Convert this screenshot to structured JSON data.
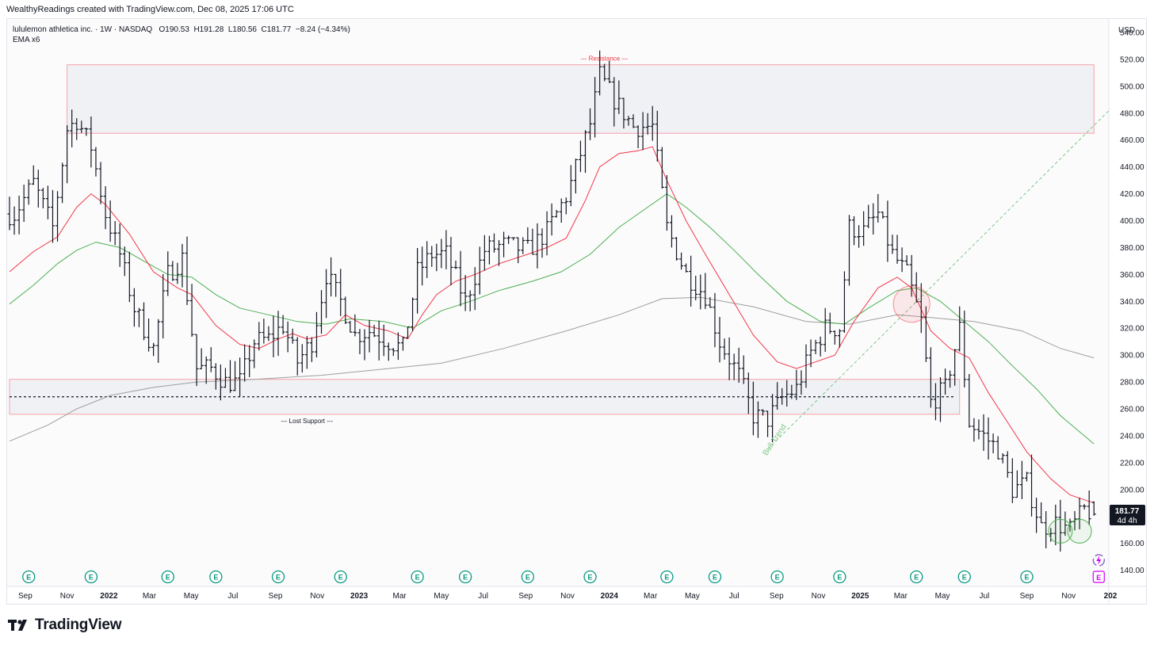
{
  "header": {
    "attribution": "WealthyReadings created with TradingView.com, Dec 08, 2025 17:06 UTC"
  },
  "legend": {
    "symbol_name": "lululemon athletica inc.",
    "interval": "1W",
    "exchange": "NASDAQ",
    "ohlc": "O190.53  H191.28  L180.56  C181.77  −8.24 (−4.34%)",
    "indicator": "EMA x6"
  },
  "brand": {
    "name": "TradingView"
  },
  "price_axis": {
    "currency": "USD",
    "badge_price": "181.77",
    "badge_time": "4d 4h"
  },
  "annotations": {
    "resistance": "--- Resistance ---",
    "lost_support": "--- Lost Support ---",
    "bull_trend": "Bull Trend"
  },
  "colors": {
    "candle": "#131722",
    "ema_fast": "#f23645",
    "ema_mid": "#4caf50",
    "ema_slow": "#9e9e9e",
    "zone_border": "#f7a1a8",
    "zone_fill": "#f0f1f5",
    "bull_trend": "#81c784",
    "earnings_badge": "#089981",
    "upcoming_badge": "#d500f9"
  },
  "chart_data": {
    "type": "ohlc",
    "title": "lululemon athletica inc. · 1W · NASDAQ",
    "ylim": [
      128,
      550
    ],
    "y_ticks": [
      140,
      160,
      180,
      200,
      220,
      240,
      260,
      280,
      300,
      320,
      340,
      360,
      380,
      400,
      420,
      440,
      460,
      480,
      500,
      520,
      540
    ],
    "x_ticks": [
      {
        "label": "Sep",
        "x": "2021-09-01",
        "year": false
      },
      {
        "label": "Nov",
        "x": "2021-11-01",
        "year": false
      },
      {
        "label": "2022",
        "x": "2022-01-01",
        "year": true
      },
      {
        "label": "Mar",
        "x": "2022-03-01",
        "year": false
      },
      {
        "label": "May",
        "x": "2022-05-01",
        "year": false
      },
      {
        "label": "Jul",
        "x": "2022-07-01",
        "year": false
      },
      {
        "label": "Sep",
        "x": "2022-09-01",
        "year": false
      },
      {
        "label": "Nov",
        "x": "2022-11-01",
        "year": false
      },
      {
        "label": "2023",
        "x": "2023-01-01",
        "year": true
      },
      {
        "label": "Mar",
        "x": "2023-03-01",
        "year": false
      },
      {
        "label": "May",
        "x": "2023-05-01",
        "year": false
      },
      {
        "label": "Jul",
        "x": "2023-07-01",
        "year": false
      },
      {
        "label": "Sep",
        "x": "2023-09-01",
        "year": false
      },
      {
        "label": "Nov",
        "x": "2023-11-01",
        "year": false
      },
      {
        "label": "2024",
        "x": "2024-01-01",
        "year": true
      },
      {
        "label": "Mar",
        "x": "2024-03-01",
        "year": false
      },
      {
        "label": "May",
        "x": "2024-05-01",
        "year": false
      },
      {
        "label": "Jul",
        "x": "2024-07-01",
        "year": false
      },
      {
        "label": "Sep",
        "x": "2024-09-01",
        "year": false
      },
      {
        "label": "Nov",
        "x": "2024-11-01",
        "year": false
      },
      {
        "label": "2025",
        "x": "2025-01-01",
        "year": true
      },
      {
        "label": "Mar",
        "x": "2025-03-01",
        "year": false
      },
      {
        "label": "May",
        "x": "2025-05-01",
        "year": false
      },
      {
        "label": "Jul",
        "x": "2025-07-01",
        "year": false
      },
      {
        "label": "Sep",
        "x": "2025-09-01",
        "year": false
      },
      {
        "label": "Nov",
        "x": "2025-11-01",
        "year": false
      },
      {
        "label": "202",
        "x": "2026-01-01",
        "year": true
      }
    ],
    "price_series": [
      {
        "x": "2021-08-16",
        "close": 405
      },
      {
        "x": "2021-09-13",
        "close": 428
      },
      {
        "x": "2021-10-11",
        "close": 395
      },
      {
        "x": "2021-11-01",
        "close": 468
      },
      {
        "x": "2021-11-15",
        "close": 475
      },
      {
        "x": "2021-12-06",
        "close": 455
      },
      {
        "x": "2021-12-27",
        "close": 405
      },
      {
        "x": "2022-01-17",
        "close": 375
      },
      {
        "x": "2022-02-07",
        "close": 335
      },
      {
        "x": "2022-03-07",
        "close": 305
      },
      {
        "x": "2022-03-28",
        "close": 360
      },
      {
        "x": "2022-04-18",
        "close": 372
      },
      {
        "x": "2022-05-09",
        "close": 290
      },
      {
        "x": "2022-05-30",
        "close": 290
      },
      {
        "x": "2022-06-20",
        "close": 280
      },
      {
        "x": "2022-07-11",
        "close": 280
      },
      {
        "x": "2022-08-01",
        "close": 310
      },
      {
        "x": "2022-08-22",
        "close": 312
      },
      {
        "x": "2022-09-12",
        "close": 322
      },
      {
        "x": "2022-10-03",
        "close": 295
      },
      {
        "x": "2022-10-24",
        "close": 310
      },
      {
        "x": "2022-11-14",
        "close": 360
      },
      {
        "x": "2022-12-05",
        "close": 340
      },
      {
        "x": "2022-12-26",
        "close": 315
      },
      {
        "x": "2023-01-16",
        "close": 318
      },
      {
        "x": "2023-02-06",
        "close": 312
      },
      {
        "x": "2023-03-06",
        "close": 305
      },
      {
        "x": "2023-03-27",
        "close": 362
      },
      {
        "x": "2023-04-17",
        "close": 375
      },
      {
        "x": "2023-05-08",
        "close": 375
      },
      {
        "x": "2023-06-05",
        "close": 340
      },
      {
        "x": "2023-07-03",
        "close": 378
      },
      {
        "x": "2023-08-01",
        "close": 382
      },
      {
        "x": "2023-09-05",
        "close": 378
      },
      {
        "x": "2023-10-02",
        "close": 392
      },
      {
        "x": "2023-11-01",
        "close": 420
      },
      {
        "x": "2023-12-04",
        "close": 472
      },
      {
        "x": "2023-12-18",
        "close": 508
      },
      {
        "x": "2024-01-08",
        "close": 490
      },
      {
        "x": "2024-02-05",
        "close": 470
      },
      {
        "x": "2024-03-04",
        "close": 470
      },
      {
        "x": "2024-03-25",
        "close": 395
      },
      {
        "x": "2024-04-22",
        "close": 360
      },
      {
        "x": "2024-05-20",
        "close": 345
      },
      {
        "x": "2024-06-10",
        "close": 310
      },
      {
        "x": "2024-07-08",
        "close": 285
      },
      {
        "x": "2024-07-29",
        "close": 255
      },
      {
        "x": "2024-08-19",
        "close": 252
      },
      {
        "x": "2024-09-09",
        "close": 268
      },
      {
        "x": "2024-09-30",
        "close": 275
      },
      {
        "x": "2024-10-21",
        "close": 302
      },
      {
        "x": "2024-11-11",
        "close": 320
      },
      {
        "x": "2024-12-02",
        "close": 320
      },
      {
        "x": "2024-12-16",
        "close": 395
      },
      {
        "x": "2025-01-06",
        "close": 392
      },
      {
        "x": "2025-01-27",
        "close": 405
      },
      {
        "x": "2025-02-17",
        "close": 375
      },
      {
        "x": "2025-03-10",
        "close": 360
      },
      {
        "x": "2025-03-31",
        "close": 325
      },
      {
        "x": "2025-04-14",
        "close": 265
      },
      {
        "x": "2025-05-05",
        "close": 275
      },
      {
        "x": "2025-05-26",
        "close": 320
      },
      {
        "x": "2025-06-09",
        "close": 250
      },
      {
        "x": "2025-06-30",
        "close": 240
      },
      {
        "x": "2025-07-21",
        "close": 230
      },
      {
        "x": "2025-08-11",
        "close": 200
      },
      {
        "x": "2025-09-01",
        "close": 205
      },
      {
        "x": "2025-09-22",
        "close": 172
      },
      {
        "x": "2025-10-13",
        "close": 175
      },
      {
        "x": "2025-11-03",
        "close": 170
      },
      {
        "x": "2025-11-24",
        "close": 185
      },
      {
        "x": "2025-12-08",
        "close": 181.77
      }
    ],
    "ema_fast": [
      {
        "x": "2021-08-09",
        "y": 362
      },
      {
        "x": "2021-09-13",
        "y": 377
      },
      {
        "x": "2021-10-18",
        "y": 388
      },
      {
        "x": "2021-11-15",
        "y": 410
      },
      {
        "x": "2021-12-06",
        "y": 420
      },
      {
        "x": "2021-12-27",
        "y": 412
      },
      {
        "x": "2022-01-31",
        "y": 390
      },
      {
        "x": "2022-03-07",
        "y": 362
      },
      {
        "x": "2022-04-11",
        "y": 350
      },
      {
        "x": "2022-05-02",
        "y": 345
      },
      {
        "x": "2022-06-06",
        "y": 322
      },
      {
        "x": "2022-07-11",
        "y": 308
      },
      {
        "x": "2022-08-08",
        "y": 305
      },
      {
        "x": "2022-09-05",
        "y": 312
      },
      {
        "x": "2022-09-26",
        "y": 316
      },
      {
        "x": "2022-10-17",
        "y": 312
      },
      {
        "x": "2022-11-14",
        "y": 315
      },
      {
        "x": "2022-12-12",
        "y": 330
      },
      {
        "x": "2023-01-09",
        "y": 322
      },
      {
        "x": "2023-02-13",
        "y": 318
      },
      {
        "x": "2023-03-13",
        "y": 312
      },
      {
        "x": "2023-04-03",
        "y": 330
      },
      {
        "x": "2023-04-24",
        "y": 345
      },
      {
        "x": "2023-05-22",
        "y": 355
      },
      {
        "x": "2023-06-19",
        "y": 360
      },
      {
        "x": "2023-07-24",
        "y": 368
      },
      {
        "x": "2023-09-04",
        "y": 375
      },
      {
        "x": "2023-10-02",
        "y": 380
      },
      {
        "x": "2023-10-30",
        "y": 387
      },
      {
        "x": "2023-11-27",
        "y": 415
      },
      {
        "x": "2023-12-18",
        "y": 440
      },
      {
        "x": "2024-01-15",
        "y": 450
      },
      {
        "x": "2024-02-12",
        "y": 452
      },
      {
        "x": "2024-03-04",
        "y": 455
      },
      {
        "x": "2024-03-25",
        "y": 430
      },
      {
        "x": "2024-04-22",
        "y": 400
      },
      {
        "x": "2024-05-20",
        "y": 375
      },
      {
        "x": "2024-06-24",
        "y": 345
      },
      {
        "x": "2024-07-29",
        "y": 315
      },
      {
        "x": "2024-09-02",
        "y": 295
      },
      {
        "x": "2024-09-30",
        "y": 290
      },
      {
        "x": "2024-10-28",
        "y": 295
      },
      {
        "x": "2024-11-25",
        "y": 300
      },
      {
        "x": "2024-12-23",
        "y": 325
      },
      {
        "x": "2025-01-27",
        "y": 350
      },
      {
        "x": "2025-02-24",
        "y": 358
      },
      {
        "x": "2025-03-17",
        "y": 350
      },
      {
        "x": "2025-04-14",
        "y": 318
      },
      {
        "x": "2025-05-12",
        "y": 305
      },
      {
        "x": "2025-06-09",
        "y": 298
      },
      {
        "x": "2025-07-07",
        "y": 272
      },
      {
        "x": "2025-08-04",
        "y": 250
      },
      {
        "x": "2025-09-01",
        "y": 228
      },
      {
        "x": "2025-10-06",
        "y": 208
      },
      {
        "x": "2025-11-03",
        "y": 196
      },
      {
        "x": "2025-12-08",
        "y": 190
      }
    ],
    "ema_mid": [
      {
        "x": "2021-08-09",
        "y": 338
      },
      {
        "x": "2021-09-13",
        "y": 352
      },
      {
        "x": "2021-10-18",
        "y": 368
      },
      {
        "x": "2021-11-15",
        "y": 378
      },
      {
        "x": "2021-12-13",
        "y": 384
      },
      {
        "x": "2022-01-17",
        "y": 380
      },
      {
        "x": "2022-02-21",
        "y": 370
      },
      {
        "x": "2022-03-28",
        "y": 360
      },
      {
        "x": "2022-05-02",
        "y": 358
      },
      {
        "x": "2022-06-06",
        "y": 345
      },
      {
        "x": "2022-07-11",
        "y": 335
      },
      {
        "x": "2022-08-22",
        "y": 330
      },
      {
        "x": "2022-10-03",
        "y": 325
      },
      {
        "x": "2022-11-14",
        "y": 323
      },
      {
        "x": "2022-12-19",
        "y": 327
      },
      {
        "x": "2023-02-06",
        "y": 325
      },
      {
        "x": "2023-03-20",
        "y": 320
      },
      {
        "x": "2023-05-01",
        "y": 333
      },
      {
        "x": "2023-06-12",
        "y": 340
      },
      {
        "x": "2023-07-24",
        "y": 348
      },
      {
        "x": "2023-09-11",
        "y": 355
      },
      {
        "x": "2023-10-23",
        "y": 362
      },
      {
        "x": "2023-12-04",
        "y": 375
      },
      {
        "x": "2024-01-15",
        "y": 395
      },
      {
        "x": "2024-02-26",
        "y": 410
      },
      {
        "x": "2024-03-25",
        "y": 420
      },
      {
        "x": "2024-04-22",
        "y": 410
      },
      {
        "x": "2024-05-27",
        "y": 395
      },
      {
        "x": "2024-07-01",
        "y": 378
      },
      {
        "x": "2024-08-05",
        "y": 360
      },
      {
        "x": "2024-09-16",
        "y": 340
      },
      {
        "x": "2024-11-04",
        "y": 325
      },
      {
        "x": "2024-12-09",
        "y": 323
      },
      {
        "x": "2025-01-13",
        "y": 335
      },
      {
        "x": "2025-02-24",
        "y": 348
      },
      {
        "x": "2025-03-24",
        "y": 350
      },
      {
        "x": "2025-04-28",
        "y": 340
      },
      {
        "x": "2025-06-02",
        "y": 325
      },
      {
        "x": "2025-07-07",
        "y": 310
      },
      {
        "x": "2025-08-11",
        "y": 292
      },
      {
        "x": "2025-09-15",
        "y": 275
      },
      {
        "x": "2025-10-20",
        "y": 255
      },
      {
        "x": "2025-11-24",
        "y": 240
      },
      {
        "x": "2025-12-08",
        "y": 234
      }
    ],
    "ema_slow": [
      {
        "x": "2021-08-09",
        "y": 236
      },
      {
        "x": "2021-10-04",
        "y": 248
      },
      {
        "x": "2021-11-15",
        "y": 260
      },
      {
        "x": "2022-01-03",
        "y": 270
      },
      {
        "x": "2022-03-07",
        "y": 276
      },
      {
        "x": "2022-05-09",
        "y": 280
      },
      {
        "x": "2022-08-01",
        "y": 282
      },
      {
        "x": "2022-11-07",
        "y": 285
      },
      {
        "x": "2023-02-13",
        "y": 290
      },
      {
        "x": "2023-05-01",
        "y": 294
      },
      {
        "x": "2023-07-31",
        "y": 305
      },
      {
        "x": "2023-10-30",
        "y": 318
      },
      {
        "x": "2024-01-15",
        "y": 330
      },
      {
        "x": "2024-03-18",
        "y": 342
      },
      {
        "x": "2024-05-13",
        "y": 343
      },
      {
        "x": "2024-07-29",
        "y": 336
      },
      {
        "x": "2024-10-14",
        "y": 325
      },
      {
        "x": "2024-12-16",
        "y": 323
      },
      {
        "x": "2025-02-24",
        "y": 330
      },
      {
        "x": "2025-04-14",
        "y": 328
      },
      {
        "x": "2025-06-16",
        "y": 325
      },
      {
        "x": "2025-08-25",
        "y": 318
      },
      {
        "x": "2025-10-20",
        "y": 305
      },
      {
        "x": "2025-12-08",
        "y": 298
      }
    ],
    "zones": [
      {
        "name": "resistance",
        "x0": "2021-11-01",
        "x1": "2025-12-08",
        "y0": 465,
        "y1": 516
      },
      {
        "name": "support",
        "x0": "2021-08-09",
        "x1": "2025-05-26",
        "y0": 256,
        "y1": 282
      }
    ],
    "support_line": {
      "x0": "2021-08-09",
      "x1": "2025-05-19",
      "y": 269
    },
    "trend_line": {
      "x0": "2024-08-19",
      "y0": 230,
      "x1": "2026-01-01",
      "y1": 483
    },
    "circles": [
      {
        "x": "2025-03-17",
        "y": 338
      },
      {
        "x": "2025-10-20",
        "y": 169
      },
      {
        "x": "2025-11-17",
        "y": 169
      }
    ],
    "earnings_markers": [
      "2021-09-06",
      "2021-12-06",
      "2022-03-28",
      "2022-06-06",
      "2022-09-05",
      "2022-12-05",
      "2023-03-27",
      "2023-06-05",
      "2023-09-04",
      "2023-12-04",
      "2024-03-25",
      "2024-06-03",
      "2024-09-02",
      "2024-12-02",
      "2025-03-24",
      "2025-06-02",
      "2025-09-01"
    ],
    "upcoming_marker": "2025-12-15",
    "last_price": 181.77
  }
}
